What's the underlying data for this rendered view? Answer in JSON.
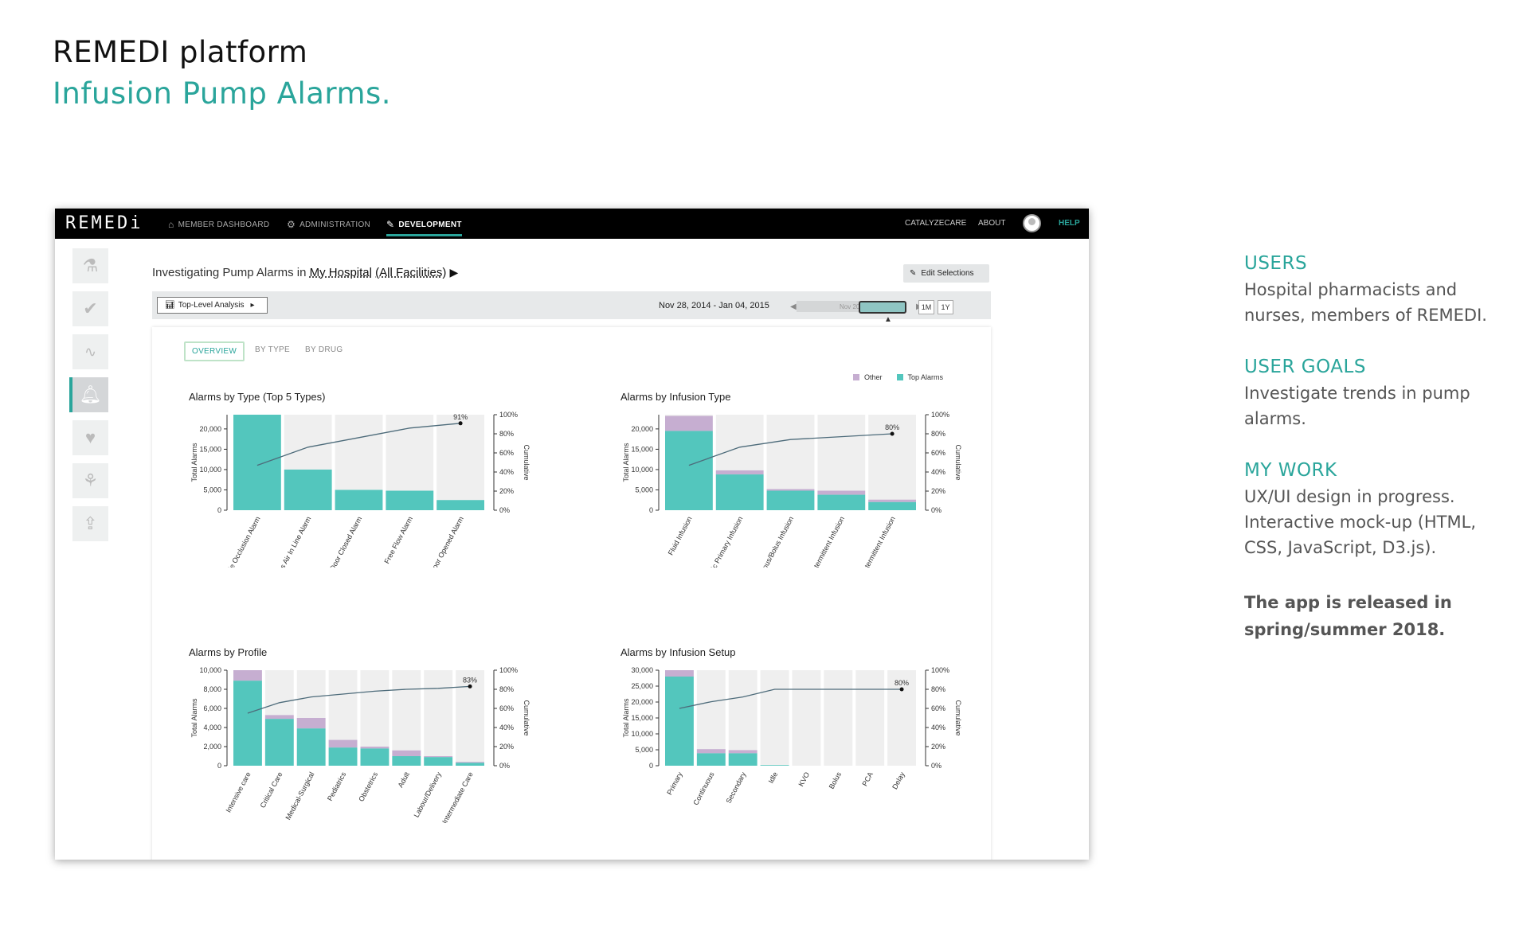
{
  "page": {
    "title": "REMEDI platform",
    "subtitle": "Infusion Pump Alarms."
  },
  "notes": {
    "users_heading": "USERS",
    "users_body": "Hospital pharmacists and nurses, members of REMEDI.",
    "goals_heading": "USER GOALS",
    "goals_body": "Investigate trends in pump alarms.",
    "work_heading": "MY WORK",
    "work_body": "UX/UI design in progress. Interactive mock-up (HTML, CSS, JavaScript, D3.js).",
    "release": "The app is released in spring/summer 2018."
  },
  "app": {
    "logo": "REMEDi",
    "nav": {
      "member_dashboard": "MEMBER DASHBOARD",
      "administration": "ADMINISTRATION",
      "development": "DEVELOPMENT",
      "catalyzecare": "CATALYZECARE",
      "about": "ABOUT",
      "help": "HELP"
    },
    "header": {
      "prefix": "Investigating Pump Alarms in",
      "hospital": "My Hospital",
      "facilities": "(All Facilities)",
      "edit_selections": "Edit Selections"
    },
    "filter": {
      "analysis": "Top-Level Analysis",
      "date_range": "Nov 28, 2014 - Jan 04, 2015",
      "slider_label": "Nov 201",
      "zoom_1m": "1M",
      "zoom_1y": "1Y"
    },
    "tabs": [
      "OVERVIEW",
      "BY TYPE",
      "BY DRUG"
    ],
    "legend": {
      "other": "Other",
      "top": "Top Alarms"
    }
  },
  "colors": {
    "teal": "#53c6bd",
    "other": "#c6aed1",
    "background_bar": "#efefef",
    "line": "#4d6b7a",
    "accent": "#2aa59b"
  },
  "chart_data": [
    {
      "type": "bar",
      "title": "Alarms by Type (Top 5 Types)",
      "ylabel": "Total Alarms",
      "y2label": "Cumulative",
      "ylim": [
        0,
        23500
      ],
      "yticks": [
        "0",
        "5,000",
        "10,000",
        "15,000",
        "20,000"
      ],
      "ytick_values": [
        0,
        5000,
        10000,
        15000,
        20000
      ],
      "categories": [
        "Patient Side Occlusion Alarm",
        "Bolus Air In Line Alarm",
        "Door Closed Alarm",
        "Free Flow Alarm",
        "Door Opened Alarm"
      ],
      "series": [
        {
          "name": "Top Alarms",
          "values": [
            23500,
            10000,
            5000,
            4800,
            2500
          ]
        },
        {
          "name": "Other",
          "values": [
            0,
            0,
            0,
            0,
            0
          ]
        }
      ],
      "cumulative": [
        47,
        66,
        76,
        86,
        91
      ],
      "cumulative_label": "91%"
    },
    {
      "type": "bar",
      "title": "Alarms by Infusion Type",
      "ylabel": "Total Alarms",
      "y2label": "Cumulative",
      "ylim": [
        0,
        23500
      ],
      "yticks": [
        "0",
        "5,000",
        "10,000",
        "15,000",
        "20,000"
      ],
      "ytick_values": [
        0,
        5000,
        10000,
        15000,
        20000
      ],
      "categories": [
        "Fluid Infusion",
        "Basic Primary Infusion",
        "Continuous/Bolus Infusion",
        "Secondary Intermittent Infusion",
        "Primary Intermittent Infusion"
      ],
      "series": [
        {
          "name": "Top Alarms",
          "values": [
            19500,
            8800,
            4800,
            3800,
            2000
          ]
        },
        {
          "name": "Other",
          "values": [
            3700,
            1000,
            400,
            1000,
            600
          ]
        }
      ],
      "cumulative": [
        47,
        66,
        74,
        77,
        80
      ],
      "cumulative_label": "80%"
    },
    {
      "type": "bar",
      "title": "Alarms by Profile",
      "ylabel": "Total Alarms",
      "y2label": "Cumulative",
      "ylim": [
        0,
        10000
      ],
      "yticks": [
        "0",
        "2,000",
        "4,000",
        "6,000",
        "8,000",
        "10,000"
      ],
      "ytick_values": [
        0,
        2000,
        4000,
        6000,
        8000,
        10000
      ],
      "categories": [
        "Intensive care",
        "Critical Care",
        "Medical-Surgical",
        "Pediatrics",
        "Obstetrics",
        "Adult",
        "Labour/Delivery",
        "Intermediate Care"
      ],
      "series": [
        {
          "name": "Top Alarms",
          "values": [
            8900,
            4900,
            3900,
            1900,
            1800,
            1000,
            900,
            300
          ]
        },
        {
          "name": "Other",
          "values": [
            1100,
            400,
            1100,
            800,
            200,
            600,
            100,
            100
          ]
        }
      ],
      "cumulative": [
        55,
        66,
        72,
        75,
        78,
        80,
        81,
        83
      ],
      "cumulative_label": "83%"
    },
    {
      "type": "bar",
      "title": "Alarms by Infusion Setup",
      "ylabel": "Total Alarms",
      "y2label": "Cumulative",
      "ylim": [
        0,
        30000
      ],
      "yticks": [
        "0",
        "5,000",
        "10,000",
        "15,000",
        "20,000",
        "25,000",
        "30,000"
      ],
      "ytick_values": [
        0,
        5000,
        10000,
        15000,
        20000,
        25000,
        30000
      ],
      "categories": [
        "Primary",
        "Continuous",
        "Secondary",
        "Idle",
        "KVO",
        "Bolus",
        "PCA",
        "Delay"
      ],
      "series": [
        {
          "name": "Top Alarms",
          "values": [
            28000,
            3900,
            3900,
            200,
            0,
            0,
            0,
            0
          ]
        },
        {
          "name": "Other",
          "values": [
            2000,
            1300,
            1000,
            0,
            0,
            0,
            0,
            0
          ]
        }
      ],
      "cumulative": [
        60,
        67,
        72,
        80,
        80,
        80,
        80,
        80
      ],
      "cumulative_label": "80%"
    }
  ]
}
